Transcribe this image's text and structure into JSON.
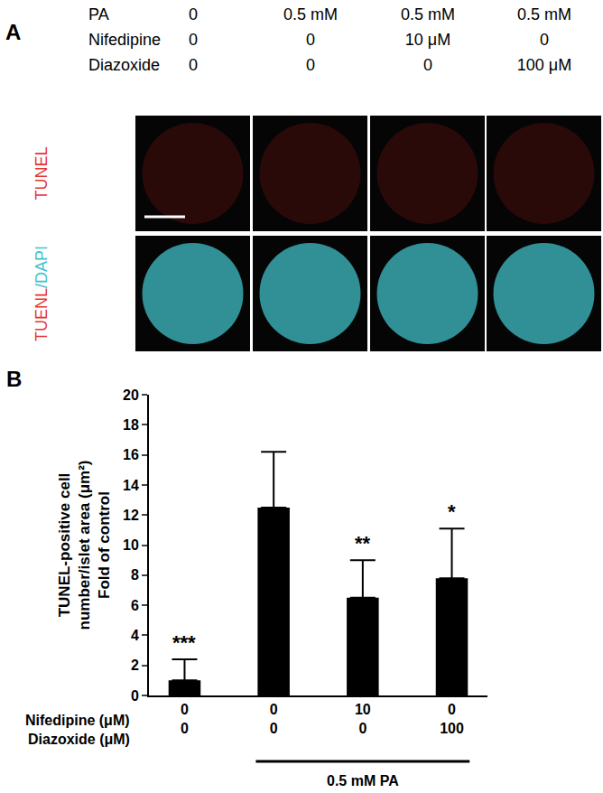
{
  "panel_a": {
    "label": "A",
    "header_rows": [
      {
        "label": "PA",
        "values": [
          "0",
          "0.5 mM",
          "0.5 mM",
          "0.5 mM"
        ]
      },
      {
        "label": "Nifedipine",
        "values": [
          "0",
          "0",
          "10 μM",
          "0"
        ]
      },
      {
        "label": "Diazoxide",
        "values": [
          "0",
          "0",
          "0",
          "100 μM"
        ]
      }
    ],
    "image_rows": [
      {
        "label": [
          {
            "text": "TUNEL",
            "color": "#e8352f"
          }
        ]
      },
      {
        "label": [
          {
            "text": "TUENL",
            "color": "#e8352f"
          },
          {
            "text": "/DAPI",
            "color": "#3fc4cc"
          }
        ]
      }
    ]
  },
  "chart_data": {
    "type": "bar",
    "panel_label": "B",
    "ylabel": [
      "TUNEL-positive cell",
      "number/islet area (μm²)",
      "Fold of control"
    ],
    "x_rows": [
      {
        "label": "Nifedipine (μM)",
        "values": [
          0,
          0,
          10,
          0
        ]
      },
      {
        "label": "Diazoxide (μM)",
        "values": [
          0,
          0,
          0,
          100
        ]
      }
    ],
    "values": [
      1.0,
      12.5,
      6.5,
      7.8
    ],
    "errors": [
      1.4,
      3.7,
      2.5,
      3.3
    ],
    "color": "#000000",
    "ylim": [
      0,
      20
    ],
    "yticks": [
      0,
      2,
      4,
      6,
      8,
      10,
      12,
      14,
      16,
      18,
      20
    ],
    "grid": false,
    "annotations": [
      {
        "category": 0,
        "text": "***"
      },
      {
        "category": 2,
        "text": "**"
      },
      {
        "category": 3,
        "text": "*"
      }
    ],
    "group": {
      "label": "0.5 mM PA",
      "from": 1,
      "to": 3
    }
  }
}
